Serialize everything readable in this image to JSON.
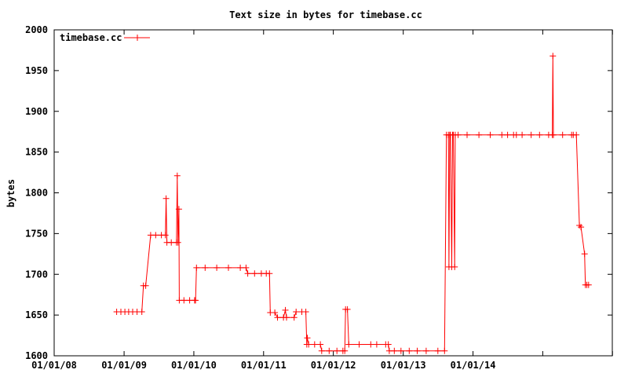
{
  "chart_data": {
    "type": "line",
    "title": "Text size in bytes for timebase.cc",
    "xlabel": "",
    "ylabel": "bytes",
    "xlim": [
      "2008-01-01",
      "2015-12-31"
    ],
    "ylim": [
      1600,
      2000
    ],
    "x_ticks": [
      "01/01/08",
      "01/01/09",
      "01/01/10",
      "01/01/11",
      "01/01/12",
      "01/01/13",
      "01/01/14"
    ],
    "y_ticks": [
      1600,
      1650,
      1700,
      1750,
      1800,
      1850,
      1900,
      1950,
      2000
    ],
    "legend": "top-left",
    "grid": false,
    "series": [
      {
        "name": "timebase.cc",
        "color": "#ff0000",
        "points": [
          [
            "2008-11-23",
            1654
          ],
          [
            "2008-12-15",
            1654
          ],
          [
            "2009-01-05",
            1654
          ],
          [
            "2009-01-25",
            1654
          ],
          [
            "2009-02-15",
            1654
          ],
          [
            "2009-03-10",
            1654
          ],
          [
            "2009-04-04",
            1654
          ],
          [
            "2009-04-12",
            1686
          ],
          [
            "2009-04-24",
            1686
          ],
          [
            "2009-05-20",
            1748
          ],
          [
            "2009-06-15",
            1748
          ],
          [
            "2009-07-15",
            1748
          ],
          [
            "2009-08-05",
            1748
          ],
          [
            "2009-08-09",
            1793
          ],
          [
            "2009-08-13",
            1739
          ],
          [
            "2009-09-05",
            1739
          ],
          [
            "2009-10-02",
            1739
          ],
          [
            "2009-10-06",
            1821
          ],
          [
            "2009-10-10",
            1739
          ],
          [
            "2009-10-15",
            1780
          ],
          [
            "2009-10-17",
            1668
          ],
          [
            "2009-11-10",
            1668
          ],
          [
            "2009-12-10",
            1668
          ],
          [
            "2010-01-05",
            1668
          ],
          [
            "2010-01-10",
            1668
          ],
          [
            "2010-01-15",
            1708
          ],
          [
            "2010-03-01",
            1708
          ],
          [
            "2010-05-01",
            1708
          ],
          [
            "2010-07-01",
            1708
          ],
          [
            "2010-09-01",
            1708
          ],
          [
            "2010-10-01",
            1708
          ],
          [
            "2010-10-10",
            1701
          ],
          [
            "2010-11-15",
            1701
          ],
          [
            "2010-12-20",
            1701
          ],
          [
            "2011-01-15",
            1701
          ],
          [
            "2011-02-01",
            1701
          ],
          [
            "2011-02-05",
            1653
          ],
          [
            "2011-03-01",
            1653
          ],
          [
            "2011-03-15",
            1647
          ],
          [
            "2011-04-15",
            1647
          ],
          [
            "2011-04-25",
            1656
          ],
          [
            "2011-05-01",
            1647
          ],
          [
            "2011-06-10",
            1647
          ],
          [
            "2011-06-20",
            1654
          ],
          [
            "2011-07-20",
            1654
          ],
          [
            "2011-08-10",
            1654
          ],
          [
            "2011-08-15",
            1614
          ],
          [
            "2011-08-18",
            1622
          ],
          [
            "2011-08-25",
            1614
          ],
          [
            "2011-09-25",
            1614
          ],
          [
            "2011-10-25",
            1614
          ],
          [
            "2011-11-01",
            1606
          ],
          [
            "2011-12-10",
            1606
          ],
          [
            "2012-01-20",
            1606
          ],
          [
            "2012-02-20",
            1606
          ],
          [
            "2012-03-01",
            1606
          ],
          [
            "2012-03-05",
            1657
          ],
          [
            "2012-03-15",
            1657
          ],
          [
            "2012-03-22",
            1614
          ],
          [
            "2012-05-15",
            1614
          ],
          [
            "2012-07-15",
            1614
          ],
          [
            "2012-08-15",
            1614
          ],
          [
            "2012-10-01",
            1614
          ],
          [
            "2012-10-15",
            1614
          ],
          [
            "2012-10-20",
            1606
          ],
          [
            "2012-11-15",
            1606
          ],
          [
            "2012-12-20",
            1606
          ],
          [
            "2013-02-01",
            1606
          ],
          [
            "2013-03-15",
            1606
          ],
          [
            "2013-05-01",
            1606
          ],
          [
            "2013-07-01",
            1606
          ],
          [
            "2013-08-05",
            1606
          ],
          [
            "2013-08-15",
            1871
          ],
          [
            "2013-08-25",
            1871
          ],
          [
            "2013-08-28",
            1709
          ],
          [
            "2013-09-01",
            1871
          ],
          [
            "2013-09-05",
            1871
          ],
          [
            "2013-09-12",
            1709
          ],
          [
            "2013-09-16",
            1871
          ],
          [
            "2013-09-20",
            1871
          ],
          [
            "2013-09-27",
            1709
          ],
          [
            "2013-09-30",
            1871
          ],
          [
            "2013-10-15",
            1871
          ],
          [
            "2013-12-01",
            1871
          ],
          [
            "2014-02-01",
            1871
          ],
          [
            "2014-04-01",
            1871
          ],
          [
            "2014-06-01",
            1871
          ],
          [
            "2014-07-01",
            1871
          ],
          [
            "2014-08-01",
            1871
          ],
          [
            "2014-08-16",
            1871
          ],
          [
            "2014-09-15",
            1871
          ],
          [
            "2014-11-01",
            1871
          ],
          [
            "2014-12-15",
            1871
          ],
          [
            "2015-02-01",
            1871
          ],
          [
            "2015-02-20",
            1871
          ],
          [
            "2015-02-23",
            1968
          ],
          [
            "2015-02-26",
            1871
          ],
          [
            "2015-04-15",
            1871
          ],
          [
            "2015-06-01",
            1871
          ],
          [
            "2015-06-10",
            1871
          ],
          [
            "2015-06-26",
            1871
          ],
          [
            "2015-07-12",
            1760
          ],
          [
            "2015-07-20",
            1758
          ],
          [
            "2015-08-08",
            1725
          ],
          [
            "2015-08-12",
            1687
          ],
          [
            "2015-08-20",
            1687
          ],
          [
            "2015-08-29",
            1687
          ]
        ]
      }
    ]
  }
}
